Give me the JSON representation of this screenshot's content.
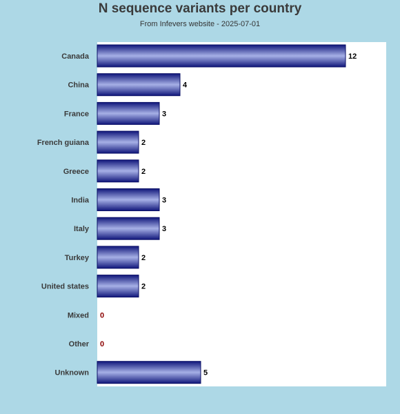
{
  "chart_data": {
    "type": "bar",
    "orientation": "horizontal",
    "title": "N sequence variants per country",
    "subtitle": "From Infevers website - 2025-07-01",
    "categories": [
      "Canada",
      "China",
      "France",
      "French guiana",
      "Greece",
      "India",
      "Italy",
      "Turkey",
      "United states",
      "Mixed",
      "Other",
      "Unknown"
    ],
    "values": [
      12,
      4,
      3,
      2,
      2,
      3,
      3,
      2,
      2,
      0,
      0,
      5
    ],
    "xlim": [
      0,
      14
    ],
    "grid": false,
    "legend": "none",
    "colors": {
      "bar_dark": "#10167a",
      "bar_light": "#a6b0e6",
      "bar_border": "#0a0f66",
      "value_label": "#000000",
      "zero_label": "#8b0000",
      "category_label": "#3a3a3a",
      "plot_background": "#ffffff",
      "page_background": "#add8e6"
    }
  }
}
